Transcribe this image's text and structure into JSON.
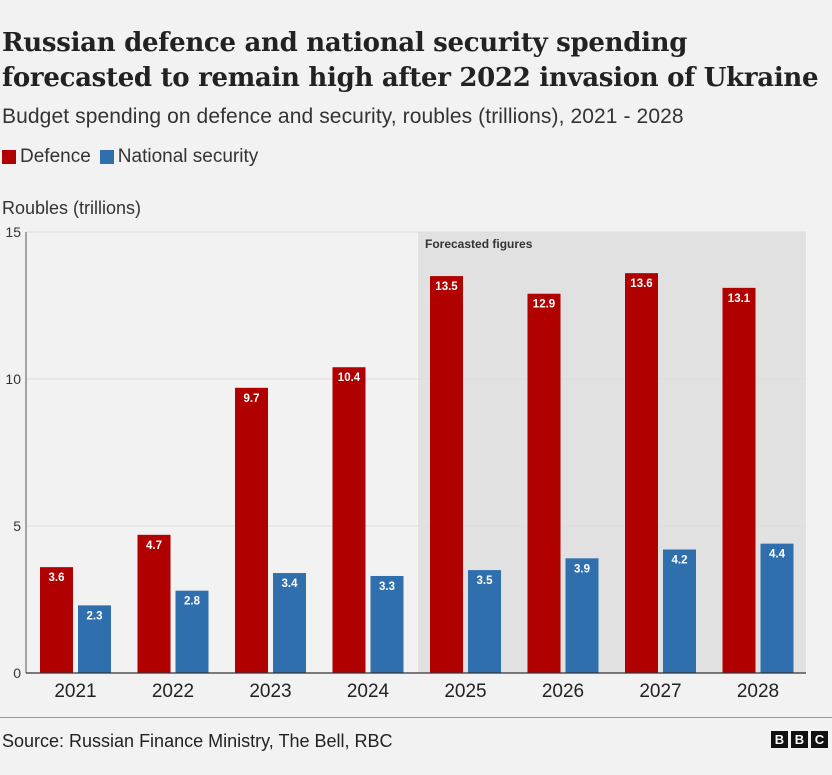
{
  "title": "Russian defence and national security spending forecasted to remain high after 2022 invasion of Ukraine",
  "subtitle": "Budget spending on defence and security, roubles (trillions), 2021 - 2028",
  "legend": [
    {
      "label": "Defence",
      "color": "#b00000"
    },
    {
      "label": "National security",
      "color": "#2f6fad"
    }
  ],
  "source": "Source: Russian Finance Ministry, The Bell, RBC",
  "logo": [
    "B",
    "B",
    "C"
  ],
  "chart_data": {
    "type": "bar",
    "title": "Russian defence and national security spending forecasted to remain high after 2022 invasion of Ukraine",
    "ylabel": "Roubles (trillions)",
    "xlabel": "",
    "ylim": [
      0,
      15
    ],
    "yticks": [
      0,
      5,
      10,
      15
    ],
    "grid": true,
    "categories": [
      "2021",
      "2022",
      "2023",
      "2024",
      "2025",
      "2026",
      "2027",
      "2028"
    ],
    "series": [
      {
        "name": "Defence",
        "color": "#b00000",
        "values": [
          3.6,
          4.7,
          9.7,
          10.4,
          13.5,
          12.9,
          13.6,
          13.1
        ]
      },
      {
        "name": "National security",
        "color": "#2f6fad",
        "values": [
          2.3,
          2.8,
          3.4,
          3.3,
          3.5,
          3.9,
          4.2,
          4.4
        ]
      }
    ],
    "annotation": {
      "label": "Forecasted figures",
      "from_category": "2025",
      "to_category": "2028"
    }
  }
}
